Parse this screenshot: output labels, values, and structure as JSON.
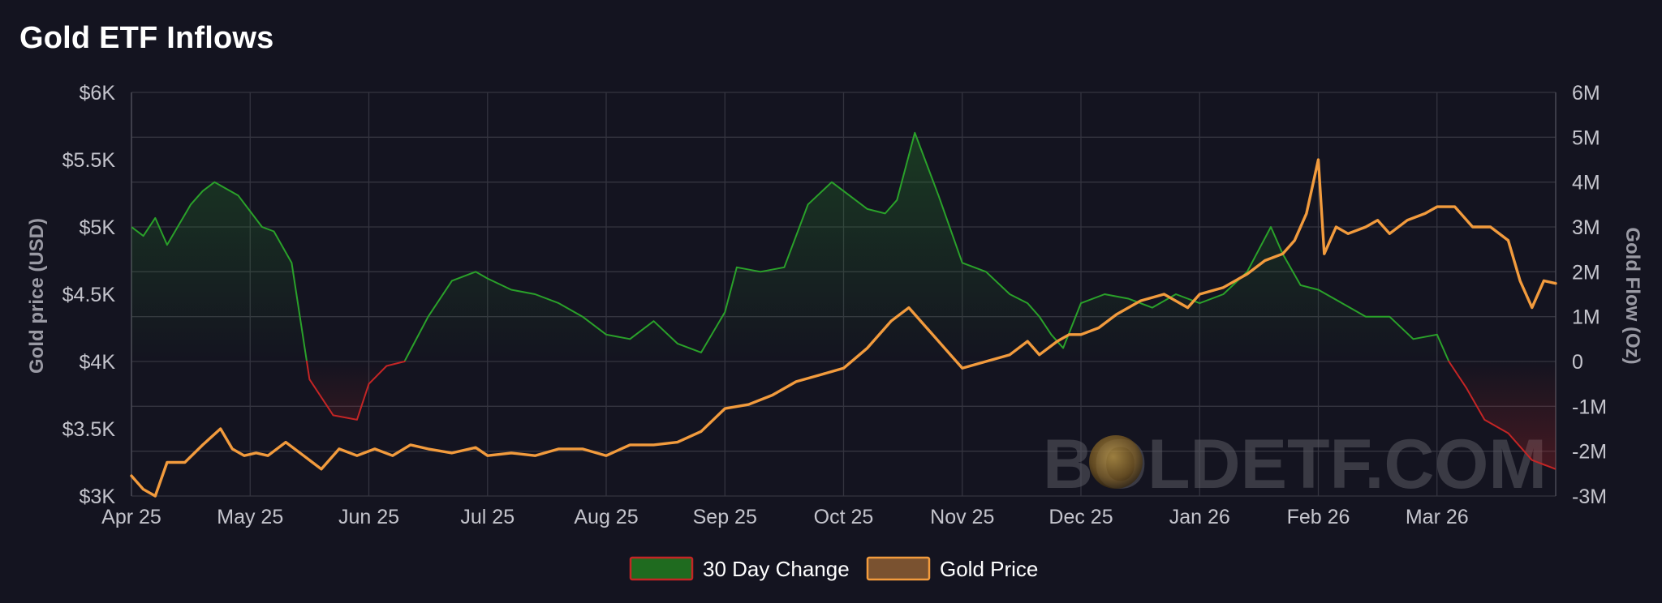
{
  "title": "Gold ETF Inflows",
  "watermark": "BOLDETF.COM",
  "colors": {
    "background": "#141420",
    "grid": "#34343f",
    "positive": "#2aa12a",
    "negative": "#c42525",
    "gold": "#f29b3d",
    "legend_change_fill": "#1f6b1f",
    "legend_change_border": "#c42525",
    "legend_gold_fill": "#7a5230",
    "legend_gold_border": "#f29b3d"
  },
  "chart_data": {
    "type": "line",
    "title": "Gold ETF Inflows",
    "xlabel": "",
    "y_left_label": "Gold price (USD)",
    "y_right_label": "Gold Flow (Oz)",
    "y_left_ticks": [
      "$6K",
      "$5.5K",
      "$5K",
      "$4.5K",
      "$4K",
      "$3.5K",
      "$3K"
    ],
    "y_right_ticks": [
      "6M",
      "5M",
      "4M",
      "3M",
      "2M",
      "1M",
      "0",
      "-1M",
      "-2M",
      "-3M"
    ],
    "x_ticks": [
      "Apr 25",
      "May 25",
      "Jun 25",
      "Jul 25",
      "Aug 25",
      "Sep 25",
      "Oct 25",
      "Nov 25",
      "Dec 25",
      "Jan 26",
      "Feb 26",
      "Mar 26"
    ],
    "y_left_range": [
      3000,
      6000
    ],
    "y_right_range": [
      -3000000,
      6000000
    ],
    "x_range_months": [
      0,
      12
    ],
    "grid": true,
    "legend_position": "bottom-center",
    "legend": [
      "30 Day Change",
      "Gold Price"
    ],
    "series": [
      {
        "name": "30 Day Change",
        "axis": "right",
        "x": [
          0,
          0.1,
          0.2,
          0.3,
          0.5,
          0.6,
          0.7,
          0.9,
          1.1,
          1.2,
          1.35,
          1.5,
          1.7,
          1.9,
          2.0,
          2.15,
          2.3,
          2.5,
          2.7,
          2.9,
          3.0,
          3.2,
          3.4,
          3.6,
          3.8,
          4.0,
          4.2,
          4.4,
          4.6,
          4.8,
          5.0,
          5.1,
          5.3,
          5.5,
          5.7,
          5.9,
          6.0,
          6.2,
          6.35,
          6.45,
          6.6,
          6.8,
          7.0,
          7.2,
          7.4,
          7.55,
          7.65,
          7.75,
          7.85,
          8.0,
          8.2,
          8.4,
          8.6,
          8.8,
          9.0,
          9.2,
          9.4,
          9.6,
          9.7,
          9.85,
          10.0,
          10.2,
          10.4,
          10.6,
          10.8,
          11.0,
          11.1,
          11.25,
          11.4,
          11.6,
          11.8,
          12.0
        ],
        "y": [
          3000000,
          2800000,
          3200000,
          2600000,
          3500000,
          3800000,
          4000000,
          3700000,
          3000000,
          2900000,
          2200000,
          -400000,
          -1200000,
          -1300000,
          -500000,
          -100000,
          0,
          1000000,
          1800000,
          2000000,
          1850000,
          1600000,
          1500000,
          1300000,
          1000000,
          600000,
          500000,
          900000,
          400000,
          200000,
          1100000,
          2100000,
          2000000,
          2100000,
          3500000,
          4000000,
          3800000,
          3400000,
          3300000,
          3600000,
          5100000,
          3700000,
          2200000,
          2000000,
          1500000,
          1300000,
          1000000,
          600000,
          300000,
          1300000,
          1500000,
          1400000,
          1200000,
          1500000,
          1300000,
          1500000,
          2000000,
          3000000,
          2400000,
          1700000,
          1600000,
          1300000,
          1000000,
          1000000,
          500000,
          600000,
          0,
          -600000,
          -1300000,
          -1600000,
          -2200000,
          -2400000
        ]
      },
      {
        "name": "Gold Price",
        "axis": "left",
        "x": [
          0,
          0.1,
          0.2,
          0.3,
          0.45,
          0.6,
          0.75,
          0.85,
          0.95,
          1.05,
          1.15,
          1.3,
          1.45,
          1.6,
          1.75,
          1.9,
          2.05,
          2.2,
          2.35,
          2.5,
          2.7,
          2.9,
          3.0,
          3.2,
          3.4,
          3.6,
          3.8,
          4.0,
          4.2,
          4.4,
          4.6,
          4.8,
          5.0,
          5.2,
          5.4,
          5.6,
          5.8,
          6.0,
          6.2,
          6.4,
          6.55,
          6.65,
          6.75,
          6.85,
          7.0,
          7.2,
          7.4,
          7.55,
          7.65,
          7.8,
          7.9,
          8.0,
          8.15,
          8.3,
          8.5,
          8.7,
          8.9,
          9.0,
          9.2,
          9.4,
          9.55,
          9.7,
          9.8,
          9.9,
          10.0,
          10.05,
          10.15,
          10.25,
          10.4,
          10.5,
          10.6,
          10.75,
          10.9,
          11.0,
          11.15,
          11.3,
          11.45,
          11.6,
          11.7,
          11.8,
          11.9,
          12.0
        ],
        "y": [
          3150,
          3050,
          3000,
          3250,
          3250,
          3380,
          3500,
          3350,
          3300,
          3320,
          3300,
          3400,
          3300,
          3200,
          3350,
          3300,
          3350,
          3300,
          3380,
          3350,
          3320,
          3360,
          3300,
          3320,
          3300,
          3350,
          3350,
          3300,
          3380,
          3380,
          3400,
          3480,
          3650,
          3680,
          3750,
          3850,
          3900,
          3950,
          4100,
          4300,
          4400,
          4300,
          4200,
          4100,
          3950,
          4000,
          4050,
          4150,
          4050,
          4150,
          4200,
          4200,
          4250,
          4350,
          4450,
          4500,
          4400,
          4500,
          4550,
          4650,
          4750,
          4800,
          4900,
          5100,
          5500,
          4800,
          5000,
          4950,
          5000,
          5050,
          4950,
          5050,
          5100,
          5150,
          5150,
          5000,
          5000,
          4900,
          4600,
          4400,
          4600,
          4580
        ]
      }
    ]
  }
}
